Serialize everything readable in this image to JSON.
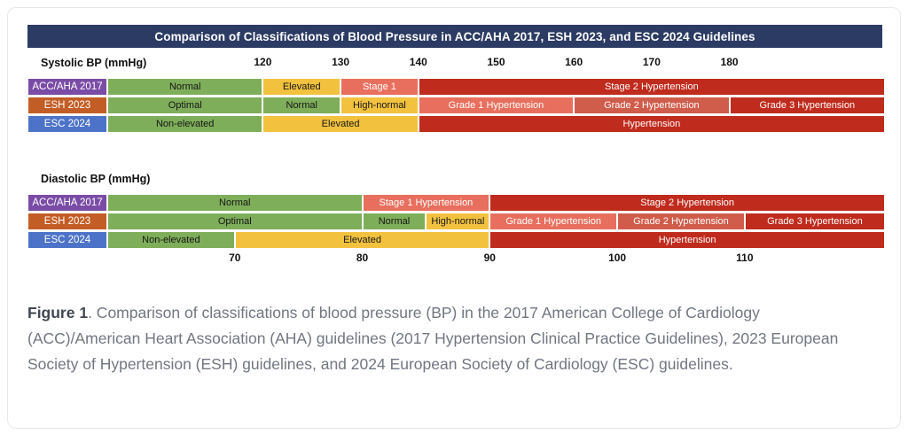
{
  "figure": {
    "title": "Comparison of Classifications of Blood Pressure in ACC/AHA 2017, ESH 2023, and ESC 2024 Guidelines",
    "title_bg": "#2b3b63"
  },
  "colors": {
    "green": "#7eae5a",
    "yellow": "#f2c23f",
    "salmon": "#e86f5e",
    "red_medium": "#d05c4b",
    "red_dark": "#bf2b1d",
    "label_accaha": "#7a4ca6",
    "label_esh": "#c35d26",
    "label_esc": "#4c73c7"
  },
  "chart_data": [
    {
      "type": "bar",
      "id": "systolic",
      "axis_label": "Systolic BP (mmHg)",
      "xlabel": "Systolic BP (mmHg)",
      "tick_position": "above",
      "ticks": [
        120,
        130,
        140,
        150,
        160,
        170,
        180
      ],
      "xlim": [
        100,
        200
      ],
      "grid": false,
      "rows": [
        {
          "guideline": "ACC/AHA 2017",
          "label_color": "label_accaha",
          "segments": [
            {
              "label": "Normal",
              "from": 100,
              "to": 120,
              "color": "green",
              "text": "dark"
            },
            {
              "label": "Elevated",
              "from": 120,
              "to": 130,
              "color": "yellow",
              "text": "dark"
            },
            {
              "label": "Stage 1",
              "from": 130,
              "to": 140,
              "color": "salmon",
              "text": "light"
            },
            {
              "label": "Stage 2 Hypertension",
              "from": 140,
              "to": 200,
              "color": "red_dark",
              "text": "light"
            }
          ]
        },
        {
          "guideline": "ESH 2023",
          "label_color": "label_esh",
          "segments": [
            {
              "label": "Optimal",
              "from": 100,
              "to": 120,
              "color": "green",
              "text": "dark"
            },
            {
              "label": "Normal",
              "from": 120,
              "to": 130,
              "color": "green",
              "text": "dark"
            },
            {
              "label": "High-normal",
              "from": 130,
              "to": 140,
              "color": "yellow",
              "text": "dark"
            },
            {
              "label": "Grade 1 Hypertension",
              "from": 140,
              "to": 160,
              "color": "salmon",
              "text": "light"
            },
            {
              "label": "Grade 2 Hypertension",
              "from": 160,
              "to": 180,
              "color": "red_medium",
              "text": "light"
            },
            {
              "label": "Grade 3 Hypertension",
              "from": 180,
              "to": 200,
              "color": "red_dark",
              "text": "light"
            }
          ]
        },
        {
          "guideline": "ESC 2024",
          "label_color": "label_esc",
          "segments": [
            {
              "label": "Non-elevated",
              "from": 100,
              "to": 120,
              "color": "green",
              "text": "dark"
            },
            {
              "label": "Elevated",
              "from": 120,
              "to": 140,
              "color": "yellow",
              "text": "dark"
            },
            {
              "label": "Hypertension",
              "from": 140,
              "to": 200,
              "color": "red_dark",
              "text": "light"
            }
          ]
        }
      ]
    },
    {
      "type": "bar",
      "id": "diastolic",
      "axis_label": "Diastolic BP (mmHg)",
      "xlabel": "Diastolic BP (mmHg)",
      "tick_position": "below",
      "ticks": [
        70,
        80,
        90,
        100,
        110
      ],
      "xlim": [
        60,
        121
      ],
      "grid": false,
      "rows": [
        {
          "guideline": "ACC/AHA 2017",
          "label_color": "label_accaha",
          "segments": [
            {
              "label": "Normal",
              "from": 60,
              "to": 80,
              "color": "green",
              "text": "dark"
            },
            {
              "label": "Stage 1 Hypertension",
              "from": 80,
              "to": 90,
              "color": "salmon",
              "text": "light"
            },
            {
              "label": "Stage 2 Hypertension",
              "from": 90,
              "to": 121,
              "color": "red_dark",
              "text": "light"
            }
          ]
        },
        {
          "guideline": "ESH 2023",
          "label_color": "label_esh",
          "segments": [
            {
              "label": "Optimal",
              "from": 60,
              "to": 80,
              "color": "green",
              "text": "dark"
            },
            {
              "label": "Normal",
              "from": 80,
              "to": 85,
              "color": "green",
              "text": "dark"
            },
            {
              "label": "High-normal",
              "from": 85,
              "to": 90,
              "color": "yellow",
              "text": "dark"
            },
            {
              "label": "Grade 1 Hypertension",
              "from": 90,
              "to": 100,
              "color": "salmon",
              "text": "light"
            },
            {
              "label": "Grade 2 Hypertension",
              "from": 100,
              "to": 110,
              "color": "red_medium",
              "text": "light"
            },
            {
              "label": "Grade 3 Hypertension",
              "from": 110,
              "to": 121,
              "color": "red_dark",
              "text": "light"
            }
          ]
        },
        {
          "guideline": "ESC 2024",
          "label_color": "label_esc",
          "segments": [
            {
              "label": "Non-elevated",
              "from": 60,
              "to": 70,
              "color": "green",
              "text": "dark"
            },
            {
              "label": "Elevated",
              "from": 70,
              "to": 90,
              "color": "yellow",
              "text": "dark"
            },
            {
              "label": "Hypertension",
              "from": 90,
              "to": 121,
              "color": "red_dark",
              "text": "light"
            }
          ]
        }
      ]
    }
  ],
  "caption": {
    "label": "Figure 1",
    "text": ". Comparison of classifications of blood pressure (BP) in the 2017 American College of Cardiology (ACC)/American Heart Association (AHA) guidelines (2017 Hypertension Clinical Practice Guidelines), 2023 European Society of Hypertension (ESH) guidelines, and 2024 European Society of Cardiology (ESC) guidelines."
  }
}
